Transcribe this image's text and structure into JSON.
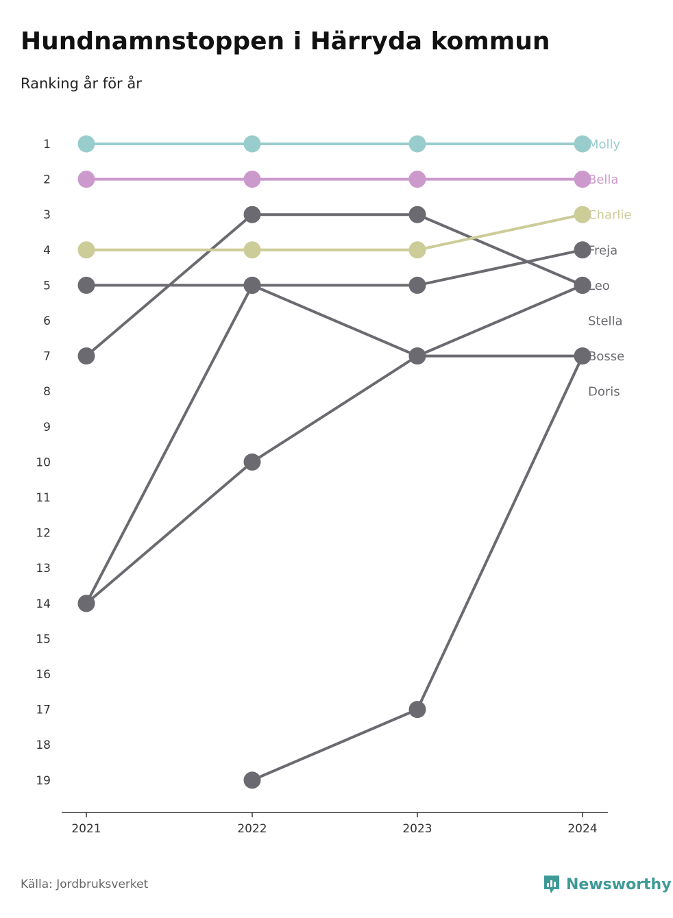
{
  "header": {
    "title": "Hundnamnstoppen i Härryda kommun",
    "subtitle": "Ranking år för år"
  },
  "footer": {
    "source": "Källa: Jordbruksverket",
    "brand": "Newsworthy",
    "brand_icon": "newsworthy-logo-icon",
    "brand_color": "#3f9a97"
  },
  "chart_data": {
    "type": "line",
    "x": [
      "2021",
      "2022",
      "2023",
      "2024"
    ],
    "y_ticks": [
      "1",
      "2",
      "3",
      "4",
      "5",
      "6",
      "7",
      "8",
      "9",
      "10",
      "11",
      "12",
      "13",
      "14",
      "15",
      "16",
      "17",
      "18",
      "19"
    ],
    "ylim": [
      1,
      19
    ],
    "y_inverted": true,
    "grid": false,
    "legend": "end-labels-right",
    "series": [
      {
        "name": "Molly",
        "values": [
          1,
          1,
          1,
          1
        ],
        "color": "#99cccc",
        "label_color": "#99cccc"
      },
      {
        "name": "Bella",
        "values": [
          2,
          2,
          2,
          2
        ],
        "color": "#cc99cc",
        "label_color": "#cc99cc"
      },
      {
        "name": "Charlie",
        "values": [
          4,
          4,
          4,
          3
        ],
        "color": "#cccc99",
        "label_color": "#cccc99"
      },
      {
        "name": "Freja",
        "values": [
          5,
          5,
          5,
          4
        ],
        "color": "#6b6a70",
        "label_color": "#6b6a70"
      },
      {
        "name": "Leo",
        "values": [
          7,
          3,
          3,
          5
        ],
        "color": "#6b6a70",
        "label_color": "#6b6a70"
      },
      {
        "name": "Stella",
        "values": [
          14,
          10,
          7,
          5
        ],
        "color": "#6b6a70",
        "label_color": "#6b6a70"
      },
      {
        "name": "Bosse",
        "values": [
          14,
          5,
          7,
          7
        ],
        "color": "#6b6a70",
        "label_color": "#6b6a70"
      },
      {
        "name": "Doris",
        "values": [
          null,
          19,
          17,
          7
        ],
        "color": "#6b6a70",
        "label_color": "#6b6a70"
      }
    ],
    "end_label_ranks": [
      1,
      2,
      3,
      4,
      5,
      6,
      7,
      8
    ]
  }
}
